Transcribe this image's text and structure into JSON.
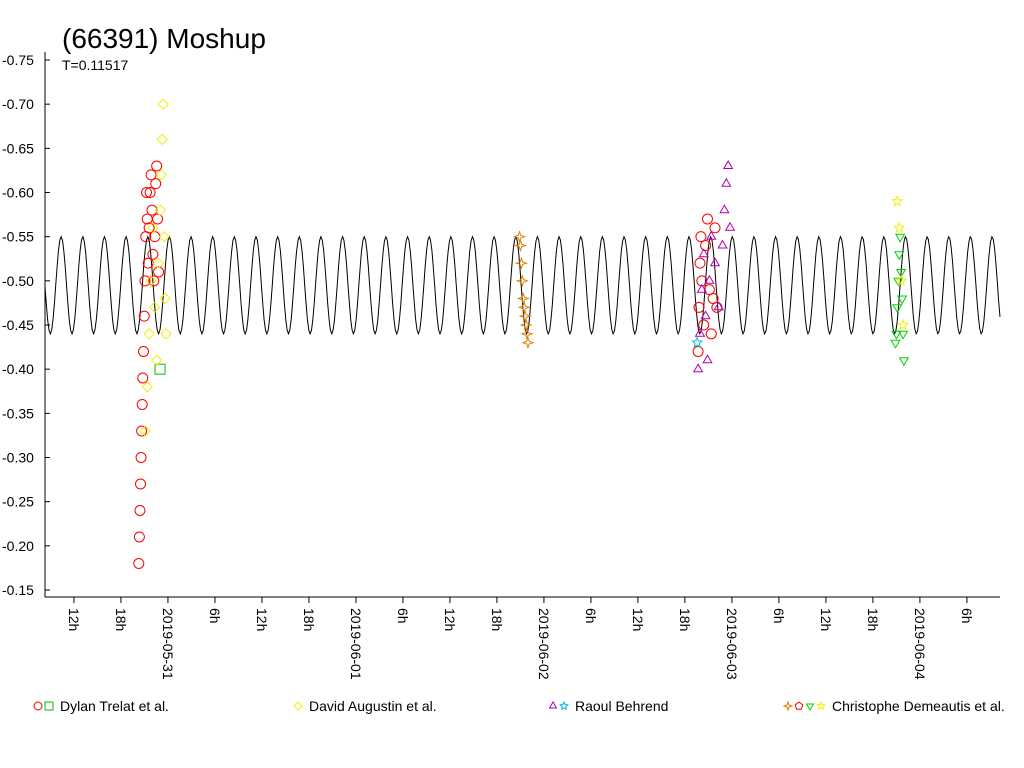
{
  "chart_data": {
    "type": "scatter",
    "title": "(66391) Moshup",
    "subtitle": "T=0.11517",
    "xlim": [
      0.346,
      5.426
    ],
    "ylim": [
      -0.75,
      -0.15
    ],
    "yticks": [
      -0.75,
      {
        "value": -0.7,
        "label": "-0.70"
      },
      -0.65,
      {
        "value": -0.6,
        "label": "-0.60"
      },
      -0.55,
      {
        "value": -0.5,
        "label": "-0.50"
      },
      -0.45,
      {
        "value": -0.4,
        "label": "-0.40"
      },
      -0.35,
      {
        "value": -0.3,
        "label": "-0.30"
      },
      -0.25,
      {
        "value": -0.2,
        "label": "-0.20"
      },
      -0.15
    ],
    "xticks": [
      {
        "value": 0.5,
        "label": "12h"
      },
      {
        "value": 0.75,
        "label": "18h"
      },
      {
        "value": 1,
        "label": "2019-05-31"
      },
      {
        "value": 1.25,
        "label": "6h"
      },
      {
        "value": 1.5,
        "label": "12h"
      },
      {
        "value": 1.75,
        "label": "18h"
      },
      {
        "value": 2,
        "label": "2019-06-01"
      },
      {
        "value": 2.25,
        "label": "6h"
      },
      {
        "value": 2.5,
        "label": "12h"
      },
      {
        "value": 2.75,
        "label": "18h"
      },
      {
        "value": 3,
        "label": "2019-06-02"
      },
      {
        "value": 3.25,
        "label": "6h"
      },
      {
        "value": 3.5,
        "label": "12h"
      },
      {
        "value": 3.75,
        "label": "18h"
      },
      {
        "value": 4,
        "label": "2019-06-03"
      },
      {
        "value": 4.25,
        "label": "6h"
      },
      {
        "value": 4.5,
        "label": "12h"
      },
      {
        "value": 4.75,
        "label": "18h"
      },
      {
        "value": 5,
        "label": "2019-06-04"
      },
      {
        "value": 5.25,
        "label": "6h"
      }
    ],
    "model": {
      "color": "#000000",
      "mean": -0.495,
      "amplitude": 0.055,
      "period": 0.11517
    },
    "series": [
      {
        "name": "Dylan Trelat et al.",
        "markers": [
          {
            "symbol": "circle",
            "color": "#ff0000",
            "x": [
              0.845,
              0.848,
              0.851,
              0.854,
              0.857,
              0.86,
              0.863,
              0.866,
              0.87,
              0.874,
              0.878,
              0.882,
              0.886,
              0.89,
              0.895,
              0.9,
              0.905,
              0.91,
              0.915,
              0.92,
              0.925,
              0.93,
              0.935,
              0.94,
              0.945,
              0.95,
              3.82,
              3.825,
              3.83,
              3.835,
              3.84,
              3.85,
              3.86,
              3.87,
              3.88,
              3.89,
              3.9,
              3.91,
              3.92
            ],
            "values": [
              -0.18,
              -0.21,
              -0.24,
              -0.27,
              -0.3,
              -0.33,
              -0.36,
              -0.39,
              -0.42,
              -0.46,
              -0.5,
              -0.55,
              -0.6,
              -0.57,
              -0.52,
              -0.56,
              -0.6,
              -0.62,
              -0.58,
              -0.53,
              -0.5,
              -0.55,
              -0.61,
              -0.63,
              -0.57,
              -0.51,
              -0.42,
              -0.47,
              -0.52,
              -0.55,
              -0.5,
              -0.45,
              -0.54,
              -0.57,
              -0.49,
              -0.44,
              -0.48,
              -0.56,
              -0.47
            ]
          },
          {
            "symbol": "square",
            "color": "#00c000",
            "x": [
              0.958
            ],
            "values": [
              -0.4
            ]
          }
        ]
      },
      {
        "name": "David Augustin et al.",
        "markers": [
          {
            "symbol": "diamond",
            "color": "#f0f000",
            "x": [
              0.88,
              0.89,
              0.9,
              0.91,
              0.92,
              0.93,
              0.94,
              0.95,
              0.96,
              0.965,
              0.97,
              0.975,
              0.98,
              0.985,
              0.99
            ],
            "values": [
              -0.33,
              -0.38,
              -0.44,
              -0.5,
              -0.56,
              -0.47,
              -0.41,
              -0.52,
              -0.58,
              -0.62,
              -0.66,
              -0.7,
              -0.55,
              -0.48,
              -0.44
            ]
          }
        ]
      },
      {
        "name": "Raoul Behrend",
        "markers": [
          {
            "symbol": "triangle",
            "color": "#b000b0",
            "x": [
              3.82,
              3.83,
              3.84,
              3.85,
              3.86,
              3.87,
              3.88,
              3.89,
              3.91,
              3.93,
              3.95,
              3.96,
              3.97,
              3.98,
              3.99
            ],
            "values": [
              -0.4,
              -0.44,
              -0.49,
              -0.53,
              -0.46,
              -0.41,
              -0.5,
              -0.55,
              -0.52,
              -0.47,
              -0.54,
              -0.58,
              -0.61,
              -0.63,
              -0.56
            ]
          },
          {
            "symbol": "star",
            "color": "#00c0e0",
            "x": [
              3.815
            ],
            "values": [
              -0.43
            ]
          }
        ]
      },
      {
        "name": "Christophe Demeautis et al.",
        "markers": [
          {
            "symbol": "cross",
            "color": "#e08000",
            "x": [
              2.87,
              2.875,
              2.88,
              2.885,
              2.89,
              2.895,
              2.9,
              2.905,
              2.91,
              2.915
            ],
            "values": [
              -0.55,
              -0.54,
              -0.52,
              -0.5,
              -0.48,
              -0.47,
              -0.46,
              -0.45,
              -0.44,
              -0.43
            ]
          },
          {
            "symbol": "pentagon",
            "color": "#ff0000",
            "x": [],
            "values": []
          },
          {
            "symbol": "triangle-down",
            "color": "#00d000",
            "x": [
              4.87,
              4.875,
              4.88,
              4.885,
              4.89,
              4.895,
              4.9,
              4.905,
              4.91,
              4.915
            ],
            "values": [
              -0.43,
              -0.44,
              -0.47,
              -0.5,
              -0.53,
              -0.55,
              -0.51,
              -0.48,
              -0.44,
              -0.41
            ]
          },
          {
            "symbol": "star",
            "color": "#f0f000",
            "x": [
              4.88,
              4.89,
              4.9,
              4.91
            ],
            "values": [
              -0.59,
              -0.56,
              -0.5,
              -0.45
            ]
          }
        ]
      }
    ]
  }
}
